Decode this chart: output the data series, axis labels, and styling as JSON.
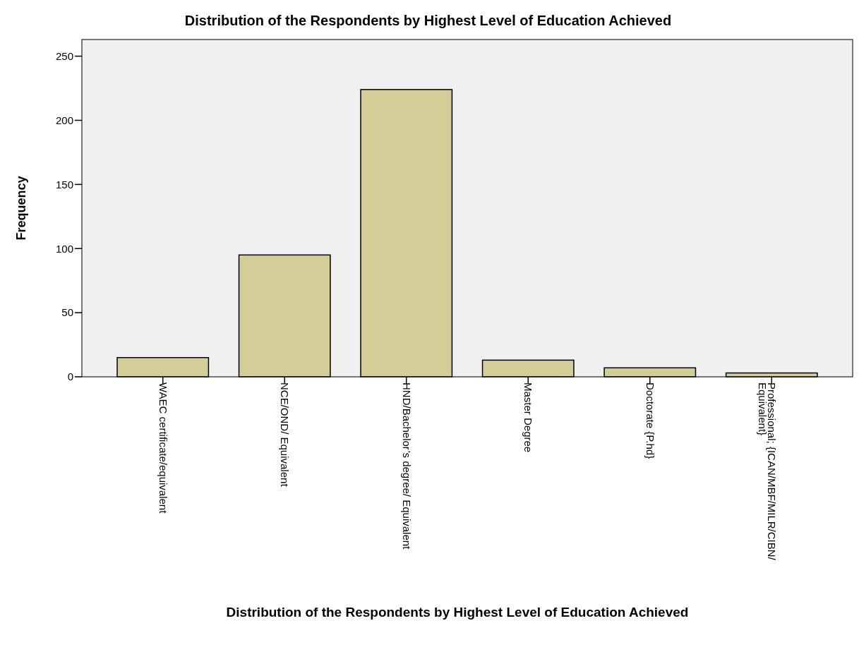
{
  "chart_data": {
    "type": "bar",
    "title": "Distribution of the Respondents by Highest Level of Education Achieved",
    "xlabel": "Distribution of the Respondents by Highest Level of Education Achieved",
    "ylabel": "Frequency",
    "categories": [
      "WAEC certificate/equivalent",
      "NCE/OND/ Equivalent",
      "HND/Bachelor’s degree/ Equivalent",
      "Master Degree",
      "Doctorate {P.hd}",
      "Professional; {ICAN/MBF/MILR/CIBN/\nEquivalent}"
    ],
    "values": [
      15,
      95,
      224,
      13,
      7,
      3
    ],
    "color": "#d3ce97",
    "ylim": [
      0,
      263
    ],
    "yticks": [
      0,
      50,
      100,
      150,
      200,
      250
    ],
    "grid": false
  }
}
